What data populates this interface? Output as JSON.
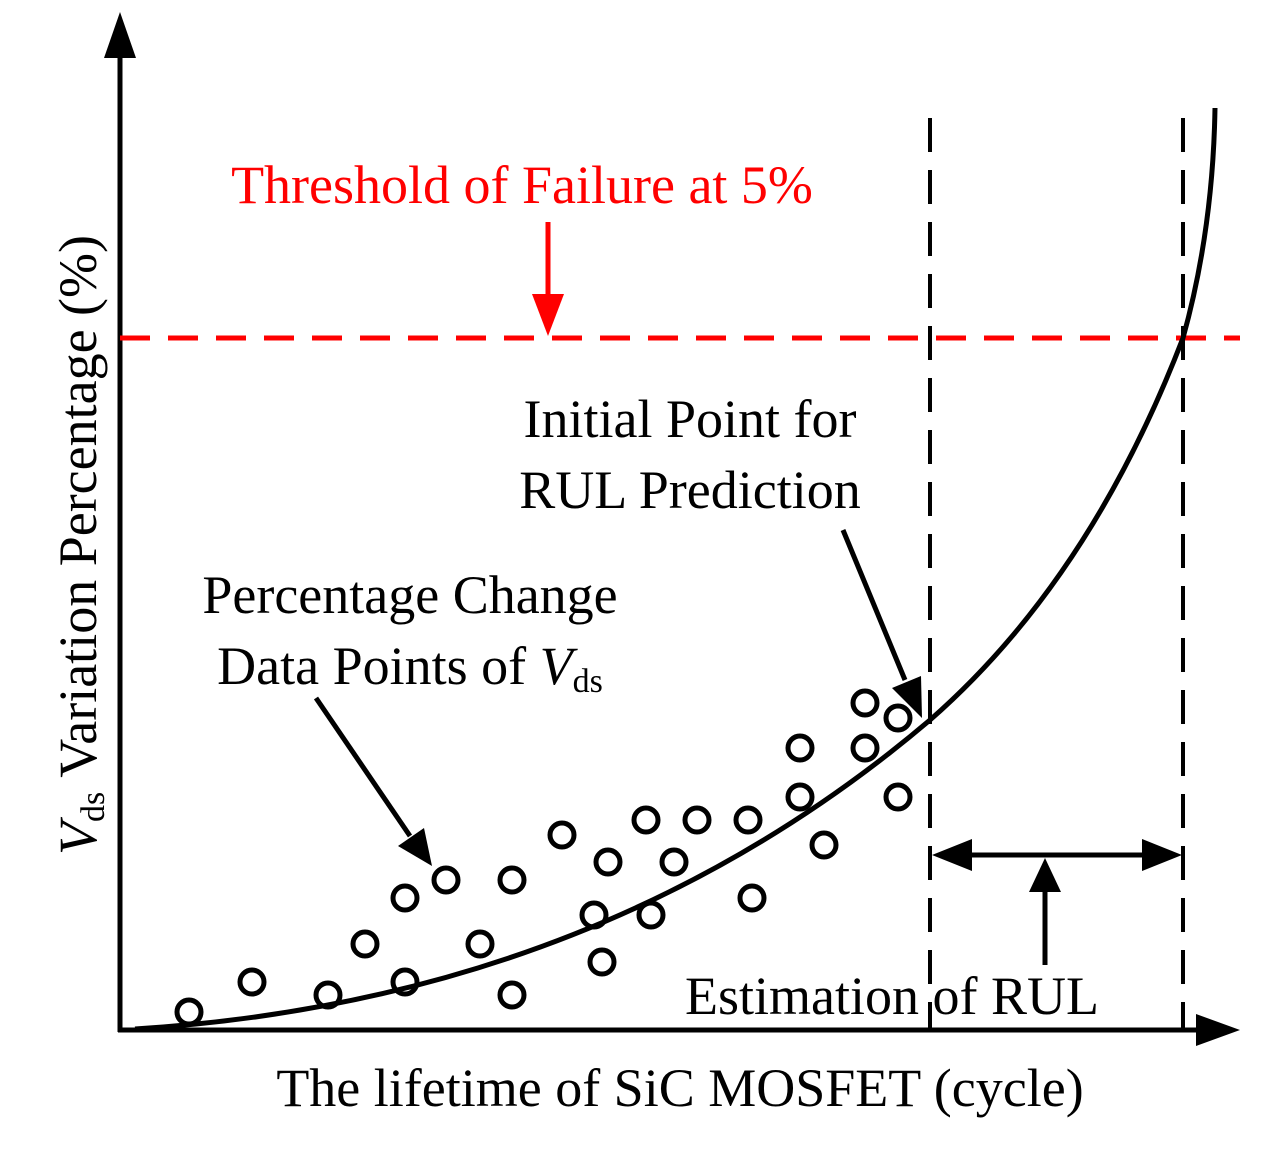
{
  "figure": {
    "x_axis_label": "The lifetime of SiC MOSFET (cycle)",
    "y_axis_label": {
      "symbol": "V",
      "subscript": "ds",
      "rest": "Variation Percentage (%)"
    },
    "threshold_label": "Threshold of Failure at 5%",
    "initial_point_label": {
      "line1": "Initial Point for",
      "line2": "RUL Prediction"
    },
    "data_points_label": {
      "line1": "Percentage Change",
      "line2_prefix": "Data Points of ",
      "symbol": "V",
      "subscript": "ds"
    },
    "rul_label": "Estimation of RUL"
  },
  "colors": {
    "threshold": "#ff0000",
    "ink": "#000000",
    "background": "#ffffff"
  }
}
